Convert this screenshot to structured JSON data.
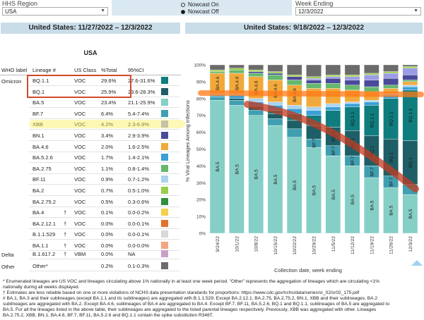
{
  "controls": {
    "region_label": "HHS Region",
    "region_value": "USA",
    "nowcast_on": "Nowcast On",
    "nowcast_off": "Nowcast Off",
    "week_label": "Week Ending",
    "week_value": "12/3/2022"
  },
  "left_banner": "United States: 11/27/2022 – 12/3/2022",
  "right_banner": "United States: 9/18/2022 – 12/3/2022",
  "table": {
    "title": "USA",
    "headers": {
      "who": "WHO label",
      "lineage": "Lineage #",
      "class": "US Class",
      "total": "%Total",
      "ci": "95%CI"
    },
    "group_omicron": "Omicron",
    "group_delta": "Delta",
    "group_other": "Other",
    "rows": [
      {
        "lineage": "BQ.1.1",
        "mark": "",
        "class": "VOC",
        "total": "29.6%",
        "ci": "27.6-31.6%",
        "color": "#0f7d7e"
      },
      {
        "lineage": "BQ.1",
        "mark": "",
        "class": "VOC",
        "total": "25.9%",
        "ci": "23.6-28.3%",
        "color": "#1e5f67"
      },
      {
        "lineage": "BA.5",
        "mark": "",
        "class": "VOC",
        "total": "23.4%",
        "ci": "21.1-25.9%",
        "color": "#85cfc6"
      },
      {
        "lineage": "BF.7",
        "mark": "",
        "class": "VOC",
        "total": "6.4%",
        "ci": "5.4-7.4%",
        "color": "#3f9fb0"
      },
      {
        "lineage": "XBB",
        "mark": "",
        "class": "VOC",
        "total": "4.2%",
        "ci": "2.3-6.9%",
        "color": "#9c9ce6"
      },
      {
        "lineage": "BN.1",
        "mark": "",
        "class": "VOC",
        "total": "3.4%",
        "ci": "2.9-3.9%",
        "color": "#4a4a9a"
      },
      {
        "lineage": "BA.4.6",
        "mark": "",
        "class": "VOC",
        "total": "2.0%",
        "ci": "1.6-2.5%",
        "color": "#f2a93b"
      },
      {
        "lineage": "BA.5.2.6",
        "mark": "",
        "class": "VOC",
        "total": "1.7%",
        "ci": "1.4-2.1%",
        "color": "#3aa0d6"
      },
      {
        "lineage": "BA.2.75",
        "mark": "",
        "class": "VOC",
        "total": "1.1%",
        "ci": "0.8-1.4%",
        "color": "#66b86e"
      },
      {
        "lineage": "BF.11",
        "mark": "",
        "class": "VOC",
        "total": "0.9%",
        "ci": "0.7-1.2%",
        "color": "#a9d3ef"
      },
      {
        "lineage": "BA.2",
        "mark": "",
        "class": "VOC",
        "total": "0.7%",
        "ci": "0.5-1.0%",
        "color": "#9acd4a"
      },
      {
        "lineage": "BA.2.75.2",
        "mark": "",
        "class": "VOC",
        "total": "0.5%",
        "ci": "0.3-0.6%",
        "color": "#2f8f3e"
      },
      {
        "lineage": "BA.4",
        "mark": "†",
        "class": "VOC",
        "total": "0.1%",
        "ci": "0.0-0.2%",
        "color": "#f5d04c"
      },
      {
        "lineage": "BA.2.12.1",
        "mark": "†",
        "class": "VOC",
        "total": "0.0%",
        "ci": "0.0-0.1%",
        "color": "#e0742d"
      },
      {
        "lineage": "B.1.1.529",
        "mark": "†",
        "class": "VOC",
        "total": "0.0%",
        "ci": "0.0-0.1%",
        "color": "#d9d9d9"
      },
      {
        "lineage": "BA.1.1",
        "mark": "†",
        "class": "VOC",
        "total": "0.0%",
        "ci": "0.0-0.0%",
        "color": "#f4a582"
      },
      {
        "lineage": "B.1.617.2",
        "mark": "†",
        "class": "VBM",
        "total": "0.0%",
        "ci": "NA",
        "color": "#c9a0c9"
      },
      {
        "lineage": "Other*",
        "mark": "",
        "class": "",
        "total": "0.2%",
        "ci": "0.1-0.3%",
        "color": "#6b6b6b"
      }
    ]
  },
  "chart_data": {
    "type": "bar",
    "stacked": true,
    "title": "United States: 9/18/2022 – 12/3/2022",
    "ylabel": "% Viral Lineages Among Infections",
    "xlabel": "Collection date, week ending",
    "ylim": [
      0,
      100
    ],
    "yticks": [
      "0%",
      "10%",
      "20%",
      "30%",
      "40%",
      "50%",
      "60%",
      "70%",
      "80%",
      "90%",
      "100%"
    ],
    "categories": [
      "9/24/22",
      "10/1/22",
      "10/8/22",
      "10/15/22",
      "10/22/22",
      "10/29/22",
      "11/5/22",
      "11/12/22",
      "11/19/22",
      "11/26/22",
      "12/3/22"
    ],
    "series": [
      {
        "name": "BA.5",
        "color": "#85cfc6",
        "values": [
          79,
          76,
          70,
          64,
          57,
          51,
          46,
          40,
          33,
          27,
          23
        ]
      },
      {
        "name": "BF.7",
        "color": "#3f9fb0",
        "values": [
          2,
          3,
          3,
          4,
          5,
          5,
          6,
          6,
          7,
          7,
          6
        ]
      },
      {
        "name": "BQ.1",
        "color": "#1e5f67",
        "values": [
          0,
          1,
          2,
          3,
          5,
          8,
          11,
          15,
          18,
          22,
          26
        ]
      },
      {
        "name": "BQ.1.1",
        "color": "#0f7d7e",
        "values": [
          0,
          0,
          1,
          2,
          4,
          6,
          10,
          14,
          18,
          24,
          30
        ]
      },
      {
        "name": "BA.5.2.6",
        "color": "#3aa0d6",
        "values": [
          1,
          2,
          2,
          3,
          3,
          3,
          2,
          2,
          2,
          2,
          2
        ]
      },
      {
        "name": "BF.11",
        "color": "#a9d3ef",
        "values": [
          1,
          1,
          2,
          2,
          2,
          2,
          2,
          1,
          1,
          1,
          1
        ]
      },
      {
        "name": "BA.4.6",
        "color": "#f2a93b",
        "values": [
          12,
          12,
          13,
          13,
          12,
          11,
          9,
          7,
          5,
          3,
          2
        ]
      },
      {
        "name": "BA.2.75",
        "color": "#66b86e",
        "values": [
          1,
          2,
          2,
          3,
          3,
          3,
          3,
          3,
          3,
          2,
          1
        ]
      },
      {
        "name": "BN.1",
        "color": "#4a4a9a",
        "values": [
          0,
          0,
          1,
          1,
          2,
          2,
          3,
          3,
          4,
          4,
          3
        ]
      },
      {
        "name": "XBB",
        "color": "#9c9ce6",
        "values": [
          0,
          0,
          0,
          0,
          0,
          1,
          1,
          2,
          3,
          3,
          4
        ]
      },
      {
        "name": "BA.2",
        "color": "#9acd4a",
        "values": [
          1,
          1,
          1,
          1,
          1,
          1,
          1,
          1,
          1,
          1,
          1
        ]
      },
      {
        "name": "Other",
        "color": "#6b6b6b",
        "values": [
          3,
          2,
          3,
          4,
          6,
          7,
          6,
          6,
          5,
          4,
          1
        ]
      }
    ],
    "bar_labels": [
      [
        "BA.5",
        "BA.4.6"
      ],
      [
        "BA.5",
        "BA.4.6"
      ],
      [
        "BA.5",
        "BA.4.6"
      ],
      [
        "BA.5",
        "BA.4.6"
      ],
      [
        "BA.5",
        "BA.4.6"
      ],
      [
        "BA.5",
        "BF.7"
      ],
      [
        "BA.5",
        "BQ.1",
        "BF.7"
      ],
      [
        "BA.5",
        "BQ.1",
        "BQ.1.1",
        "BF.7"
      ],
      [
        "BA.5",
        "BQ.1",
        "BQ.1.1",
        "BF.7"
      ],
      [
        "BA.5",
        "BQ.1",
        "BQ.1.1",
        "BF.7"
      ],
      [
        "BA.5",
        "BQ.1",
        "BQ.1.1"
      ]
    ]
  },
  "footer": [
    "*      Enumerated lineages are US VOC and lineages circulating above 1% nationally in at least one week period. \"Other\" represents the aggregation of lineages which are circulating <1%",
    "nationally during all weeks displayed.",
    "†      Estimates are less reliable based on one or more violations of NCHS data presentation standards for proportions: https://www.cdc.gov/nchs/data/series/sr_02/sr02_175.pdf",
    "#      BA.1, BA.3 and their sublineages (except BA.1.1 and its sublineages) are aggregated with B.1.1.529. Except BA.2.12.1, BA.2.75, BA.2.75.2, BN.1, XBB and their sublineages, BA.2",
    "sublineages are aggregated with BA.2. Except BA.4.6, sublineages of BA.4 are aggregated to BA.4. Except BF.7, BF.11, BA.5.2.6, BQ.1 and BQ.1.1, sublineages of BA.5 are aggregated to",
    "BA.5. For all the lineages listed in the above table, their sublineages are aggregated to the listed parental lineages respectively. Previously, XBB was aggregated with other. Lineages",
    "BA.2.75.2, XBB, BN.1, BA.4.6, BF.7, BF.11, BA.5.2.6 and BQ.1.1 contain the spike substitution R346T."
  ]
}
